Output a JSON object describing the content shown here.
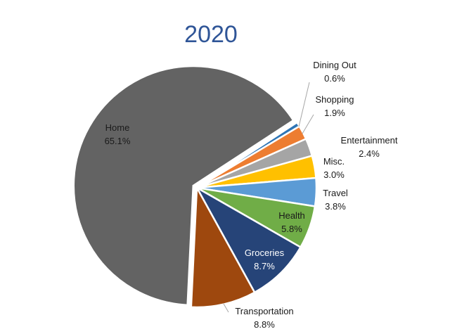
{
  "chart_data": {
    "type": "pie",
    "title": "2020",
    "series": [
      {
        "name": "Home",
        "value": 65.1,
        "label": "65.1%",
        "color": "#636363"
      },
      {
        "name": "Dining Out",
        "value": 0.6,
        "label": "0.6%",
        "color": "#2e75b6"
      },
      {
        "name": "Shopping",
        "value": 1.9,
        "label": "1.9%",
        "color": "#ed7d31"
      },
      {
        "name": "Entertainment",
        "value": 2.4,
        "label": "2.4%",
        "color": "#a5a5a5"
      },
      {
        "name": "Misc.",
        "value": 3.0,
        "label": "3.0%",
        "color": "#ffc000"
      },
      {
        "name": "Travel",
        "value": 3.8,
        "label": "3.8%",
        "color": "#5b9bd5"
      },
      {
        "name": "Health",
        "value": 5.8,
        "label": "5.8%",
        "color": "#70ad47"
      },
      {
        "name": "Groceries",
        "value": 8.7,
        "label": "8.7%",
        "color": "#264478"
      },
      {
        "name": "Transportation",
        "value": 8.8,
        "label": "8.8%",
        "color": "#9e480e"
      }
    ]
  }
}
